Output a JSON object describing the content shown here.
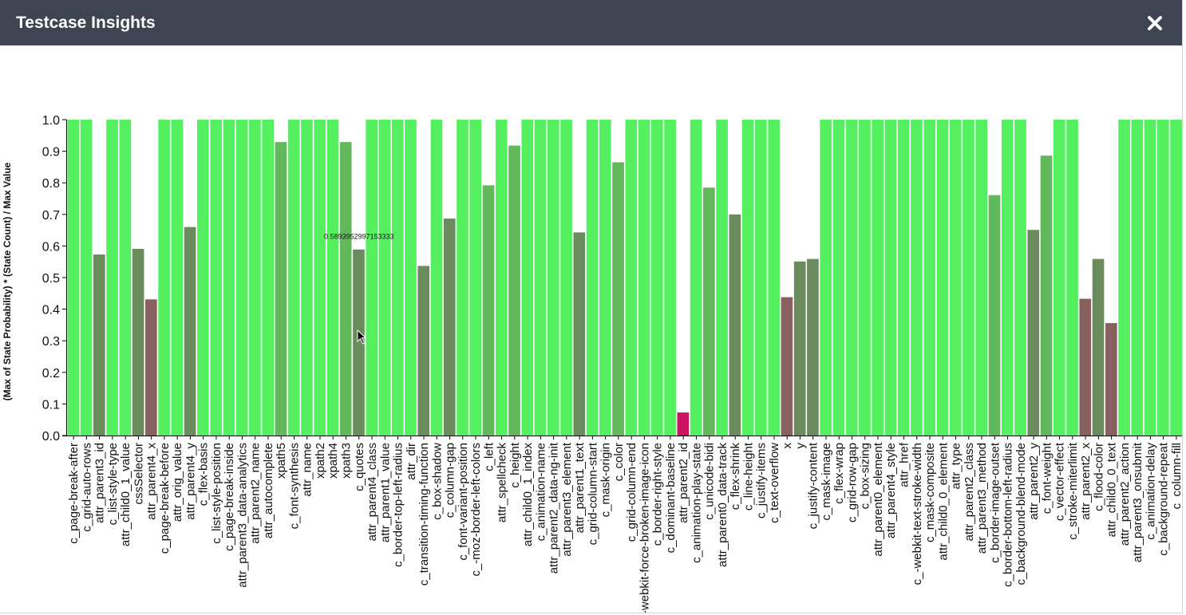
{
  "header": {
    "title": "Testcase Insights",
    "close_icon": "close-icon"
  },
  "colors": {
    "header_bg": "#3f4452",
    "max": "#55f060",
    "high": "#62b95b",
    "mid": "#6a8c5c",
    "low": "#886060",
    "min": "#cc1260"
  },
  "chart_data": {
    "type": "bar",
    "ylabel": "(Max of State Probability) * (State Count) / Max Value",
    "xlabel": "",
    "ylim": [
      0,
      1.0
    ],
    "yticks": [
      "0.0",
      "0.1",
      "0.2",
      "0.3",
      "0.4",
      "0.5",
      "0.6",
      "0.7",
      "0.8",
      "0.9",
      "1.0"
    ],
    "tooltip": {
      "text": "0.5893952997153333",
      "category": "c_quotes"
    },
    "categories": [
      "c_page-break-after",
      "c_grid-auto-rows",
      "attr_parent3_id",
      "c_list-style-type",
      "attr_child0_1_value",
      "cssSelector",
      "attr_parent4_x",
      "c_page-break-before",
      "attr_orig_value",
      "attr_parent4_y",
      "c_flex-basis",
      "c_list-style-position",
      "c_page-break-inside",
      "attr_parent3_data-analytics",
      "attr_parent2_name",
      "attr_autocomplete",
      "xpath5",
      "c_font-synthesis",
      "attr_name",
      "xpath2",
      "xpath4",
      "xpath3",
      "c_quotes",
      "attr_parent4_class",
      "attr_parent1_value",
      "c_border-top-left-radius",
      "attr_dir",
      "c_transition-timing-function",
      "c_box-shadow",
      "c_column-gap",
      "c_font-variant-position",
      "c_-moz-border-left-colors",
      "c_left",
      "attr_spellcheck",
      "c_height",
      "attr_child0_1_index",
      "c_animation-name",
      "attr_parent2_data-ng-init",
      "attr_parent3_element",
      "attr_parent1_text",
      "c_grid-column-start",
      "c_mask-origin",
      "c_color",
      "c_grid-column-end",
      "c_-webkit-force-broken-image-icon",
      "c_border-right-style",
      "c_dominant-baseline",
      "attr_parent2_id",
      "c_animation-play-state",
      "c_unicode-bidi",
      "attr_parent0_data-track",
      "c_flex-shrink",
      "c_line-height",
      "c_justify-items",
      "c_text-overflow",
      "x",
      "y",
      "c_justify-content",
      "c_mask-image",
      "c_flex-wrap",
      "c_grid-row-gap",
      "c_box-sizing",
      "attr_parent0_element",
      "attr_parent4_style",
      "attr_href",
      "c_-webkit-text-stroke-width",
      "c_mask-composite",
      "attr_child0_0_element",
      "attr_type",
      "attr_parent2_class",
      "attr_parent3_method",
      "c_border-image-outset",
      "c_border-bottom-left-radius",
      "c_background-blend-mode",
      "attr_parent2_y",
      "c_font-weight",
      "c_vector-effect",
      "c_stroke-miterlimit",
      "attr_parent2_x",
      "c_flood-color",
      "attr_child0_0_text",
      "attr_parent2_action",
      "attr_parent3_onsubmit",
      "c_animation-delay",
      "c_background-repeat",
      "c_column-fill"
    ],
    "values": [
      1.0,
      1.0,
      0.573,
      1.0,
      1.0,
      0.591,
      0.431,
      1.0,
      1.0,
      0.66,
      1.0,
      1.0,
      1.0,
      1.0,
      1.0,
      1.0,
      0.929,
      1.0,
      1.0,
      1.0,
      1.0,
      0.929,
      0.589,
      1.0,
      1.0,
      1.0,
      1.0,
      0.537,
      1.0,
      0.687,
      1.0,
      1.0,
      0.792,
      1.0,
      0.918,
      1.0,
      1.0,
      1.0,
      1.0,
      0.643,
      1.0,
      1.0,
      0.865,
      1.0,
      1.0,
      1.0,
      1.0,
      0.073,
      1.0,
      0.785,
      1.0,
      0.7,
      1.0,
      1.0,
      1.0,
      0.438,
      0.551,
      0.559,
      1.0,
      1.0,
      1.0,
      1.0,
      1.0,
      1.0,
      1.0,
      1.0,
      1.0,
      1.0,
      1.0,
      1.0,
      1.0,
      0.761,
      1.0,
      1.0,
      0.651,
      0.886,
      1.0,
      1.0,
      0.433,
      0.559,
      0.356,
      1.0,
      1.0,
      1.0,
      1.0,
      1.0
    ]
  }
}
